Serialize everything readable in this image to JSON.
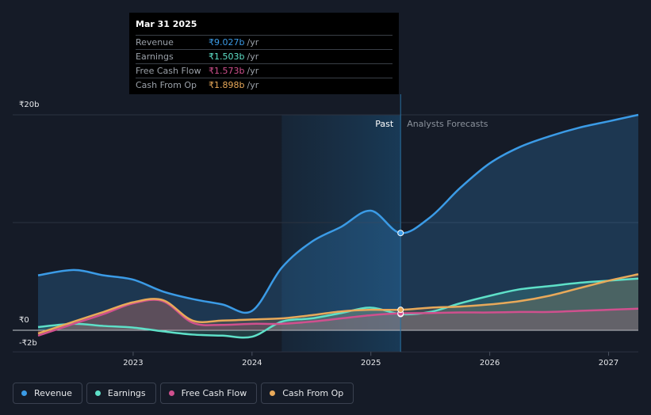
{
  "tooltip": {
    "date": "Mar 31 2025",
    "rows": [
      {
        "label": "Revenue",
        "value": "₹9.027b",
        "unit": "/yr",
        "color": "#3b9be6"
      },
      {
        "label": "Earnings",
        "value": "₹1.503b",
        "unit": "/yr",
        "color": "#5ee0c8"
      },
      {
        "label": "Free Cash Flow",
        "value": "₹1.573b",
        "unit": "/yr",
        "color": "#d0508e"
      },
      {
        "label": "Cash From Op",
        "value": "₹1.898b",
        "unit": "/yr",
        "color": "#e8a95a"
      }
    ]
  },
  "regions": {
    "past_label": "Past",
    "forecast_label": "Analysts Forecasts",
    "divider_x": 2025.25,
    "past_shade_start": 2024.25
  },
  "legend": [
    {
      "label": "Revenue",
      "color": "#3b9be6"
    },
    {
      "label": "Earnings",
      "color": "#5ee0c8"
    },
    {
      "label": "Free Cash Flow",
      "color": "#d0508e"
    },
    {
      "label": "Cash From Op",
      "color": "#e8a95a"
    }
  ],
  "chart_data": {
    "type": "line",
    "title": "",
    "xlabel": "",
    "ylabel": "",
    "xlim": [
      2022.2,
      2027.25
    ],
    "ylim": [
      -2,
      20
    ],
    "y_ticks": [
      {
        "value": 20,
        "label": "₹20b"
      },
      {
        "value": 0,
        "label": "₹0"
      },
      {
        "value": -2,
        "label": "-₹2b"
      }
    ],
    "x_ticks": [
      {
        "value": 2023,
        "label": "2023"
      },
      {
        "value": 2024,
        "label": "2024"
      },
      {
        "value": 2025,
        "label": "2025"
      },
      {
        "value": 2026,
        "label": "2026"
      },
      {
        "value": 2027,
        "label": "2027"
      }
    ],
    "gridlines": [
      20,
      10,
      0,
      -2
    ],
    "highlight": {
      "x": 2025.25,
      "values": {
        "Revenue": 9.027,
        "Earnings": 1.503,
        "Free Cash Flow": 1.573,
        "Cash From Op": 1.898
      }
    },
    "series": [
      {
        "name": "Revenue",
        "color": "#3b9be6",
        "points": [
          [
            2022.2,
            5.1
          ],
          [
            2022.5,
            5.6
          ],
          [
            2022.75,
            5.1
          ],
          [
            2023.0,
            4.7
          ],
          [
            2023.25,
            3.6
          ],
          [
            2023.5,
            2.9
          ],
          [
            2023.75,
            2.4
          ],
          [
            2024.0,
            1.8
          ],
          [
            2024.25,
            5.8
          ],
          [
            2024.5,
            8.2
          ],
          [
            2024.75,
            9.6
          ],
          [
            2025.0,
            11.1
          ],
          [
            2025.25,
            9.027
          ],
          [
            2025.5,
            10.5
          ],
          [
            2025.75,
            13.2
          ],
          [
            2026.0,
            15.5
          ],
          [
            2026.25,
            17.0
          ],
          [
            2026.5,
            18.0
          ],
          [
            2026.75,
            18.8
          ],
          [
            2027.0,
            19.4
          ],
          [
            2027.25,
            20.0
          ]
        ]
      },
      {
        "name": "Earnings",
        "color": "#5ee0c8",
        "points": [
          [
            2022.2,
            0.3
          ],
          [
            2022.5,
            0.6
          ],
          [
            2022.75,
            0.4
          ],
          [
            2023.0,
            0.25
          ],
          [
            2023.25,
            -0.1
          ],
          [
            2023.5,
            -0.4
          ],
          [
            2023.75,
            -0.5
          ],
          [
            2024.0,
            -0.6
          ],
          [
            2024.25,
            0.8
          ],
          [
            2024.5,
            1.1
          ],
          [
            2024.75,
            1.6
          ],
          [
            2025.0,
            2.1
          ],
          [
            2025.25,
            1.503
          ],
          [
            2025.5,
            1.7
          ],
          [
            2025.75,
            2.5
          ],
          [
            2026.0,
            3.2
          ],
          [
            2026.25,
            3.8
          ],
          [
            2026.5,
            4.1
          ],
          [
            2026.75,
            4.4
          ],
          [
            2027.0,
            4.6
          ],
          [
            2027.25,
            4.8
          ]
        ]
      },
      {
        "name": "Free Cash Flow",
        "color": "#d0508e",
        "points": [
          [
            2022.2,
            -0.5
          ],
          [
            2022.5,
            0.6
          ],
          [
            2022.75,
            1.5
          ],
          [
            2023.0,
            2.5
          ],
          [
            2023.25,
            2.7
          ],
          [
            2023.5,
            0.7
          ],
          [
            2023.75,
            0.5
          ],
          [
            2024.0,
            0.6
          ],
          [
            2024.25,
            0.6
          ],
          [
            2024.5,
            0.8
          ],
          [
            2024.75,
            1.1
          ],
          [
            2025.0,
            1.4
          ],
          [
            2025.25,
            1.573
          ],
          [
            2025.5,
            1.6
          ],
          [
            2025.75,
            1.65
          ],
          [
            2026.0,
            1.65
          ],
          [
            2026.25,
            1.7
          ],
          [
            2026.5,
            1.7
          ],
          [
            2026.75,
            1.8
          ],
          [
            2027.0,
            1.9
          ],
          [
            2027.25,
            2.0
          ]
        ]
      },
      {
        "name": "Cash From Op",
        "color": "#e8a95a",
        "points": [
          [
            2022.2,
            -0.3
          ],
          [
            2022.5,
            0.8
          ],
          [
            2022.75,
            1.7
          ],
          [
            2023.0,
            2.6
          ],
          [
            2023.25,
            2.8
          ],
          [
            2023.5,
            0.9
          ],
          [
            2023.75,
            0.9
          ],
          [
            2024.0,
            1.0
          ],
          [
            2024.25,
            1.1
          ],
          [
            2024.5,
            1.4
          ],
          [
            2024.75,
            1.75
          ],
          [
            2025.0,
            1.9
          ],
          [
            2025.25,
            1.898
          ],
          [
            2025.5,
            2.1
          ],
          [
            2025.75,
            2.2
          ],
          [
            2026.0,
            2.4
          ],
          [
            2026.25,
            2.7
          ],
          [
            2026.5,
            3.2
          ],
          [
            2026.75,
            3.9
          ],
          [
            2027.0,
            4.6
          ],
          [
            2027.25,
            5.2
          ]
        ]
      }
    ]
  }
}
